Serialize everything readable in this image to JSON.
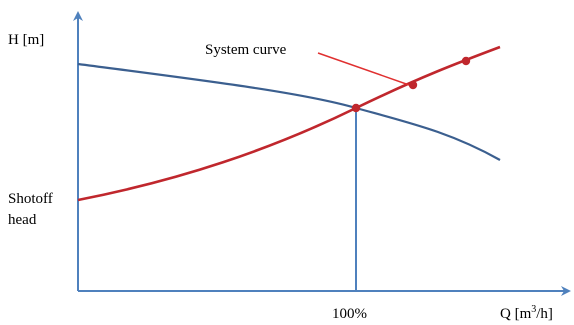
{
  "labels": {
    "y_axis": "H [m]",
    "x_axis_base": "Q [m",
    "x_axis_sup": "3",
    "x_axis_end": "/h]",
    "system_curve": "System curve",
    "shutoff_line1": "Shotoff",
    "shutoff_line2": "head",
    "operating_point": "100%"
  },
  "colors": {
    "axis": "#4f81bd",
    "pump_curve": "#3b5f8f",
    "system_curve": "#c0272d",
    "callout": "#e03030",
    "marker": "#c0272d"
  }
}
